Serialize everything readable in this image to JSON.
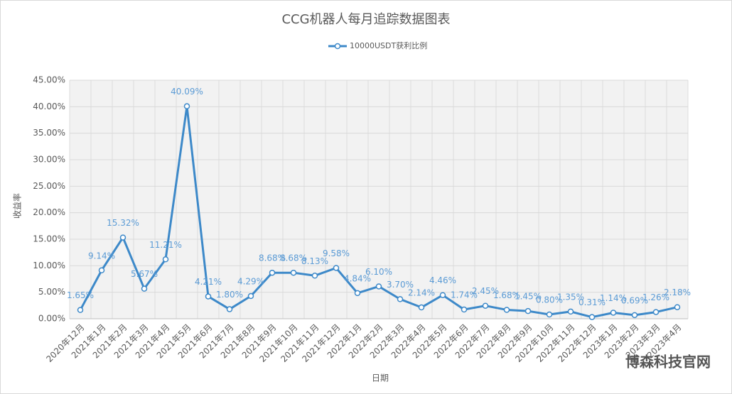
{
  "chart_data": {
    "type": "line",
    "title": "CCG机器人每月追踪数据图表",
    "x_label": "日期",
    "y_label": "收益率",
    "categories": [
      "2020年12月",
      "2021年1月",
      "2021年2月",
      "2021年3月",
      "2021年4月",
      "2021年5月",
      "2021年6月",
      "2021年7月",
      "2021年8月",
      "2021年9月",
      "2021年10月",
      "2021年11月",
      "2021年12月",
      "2022年1月",
      "2022年2月",
      "2022年3月",
      "2022年4月",
      "2022年5月",
      "2022年6月",
      "2022年7月",
      "2022年8月",
      "2022年9月",
      "2022年10月",
      "2022年11月",
      "2022年12月",
      "2023年1月",
      "2023年2月",
      "2023年3月",
      "2023年4月"
    ],
    "series": [
      {
        "name": "10000USDT获利比例",
        "color": "#3d89c9",
        "values": [
          1.65,
          9.14,
          15.32,
          5.67,
          11.21,
          40.09,
          4.21,
          1.8,
          4.29,
          8.68,
          8.68,
          8.13,
          9.58,
          4.84,
          6.1,
          3.7,
          2.14,
          4.46,
          1.74,
          2.45,
          1.68,
          1.45,
          0.8,
          1.35,
          0.31,
          1.14,
          0.69,
          1.26,
          2.18
        ],
        "value_labels": [
          "1.65%",
          "9.14%",
          "15.32%",
          "5.67%",
          "11.21%",
          "40.09%",
          "4.21%",
          "1.80%",
          "4.29%",
          "8.68%",
          "8.68%",
          "8.13%",
          "9.58%",
          "4.84%",
          "6.10%",
          "3.70%",
          "2.14%",
          "4.46%",
          "1.74%",
          "2.45%",
          "1.68%",
          "1.45%",
          "0.80%",
          "1.35%",
          "0.31%",
          "1.14%",
          "0.69%",
          "1.26%",
          "2.18%"
        ]
      }
    ],
    "ylim": [
      0,
      45
    ],
    "yticks": [
      {
        "value": 0,
        "label": "0.00%"
      },
      {
        "value": 5,
        "label": "5.00%"
      },
      {
        "value": 10,
        "label": "10.00%"
      },
      {
        "value": 15,
        "label": "15.00%"
      },
      {
        "value": 20,
        "label": "20.00%"
      },
      {
        "value": 25,
        "label": "25.00%"
      },
      {
        "value": 30,
        "label": "30.00%"
      },
      {
        "value": 35,
        "label": "35.00%"
      },
      {
        "value": 40,
        "label": "40.00%"
      },
      {
        "value": 45,
        "label": "45.00%"
      }
    ],
    "grid": true,
    "legend": "top",
    "watermark": "博森科技官网"
  }
}
